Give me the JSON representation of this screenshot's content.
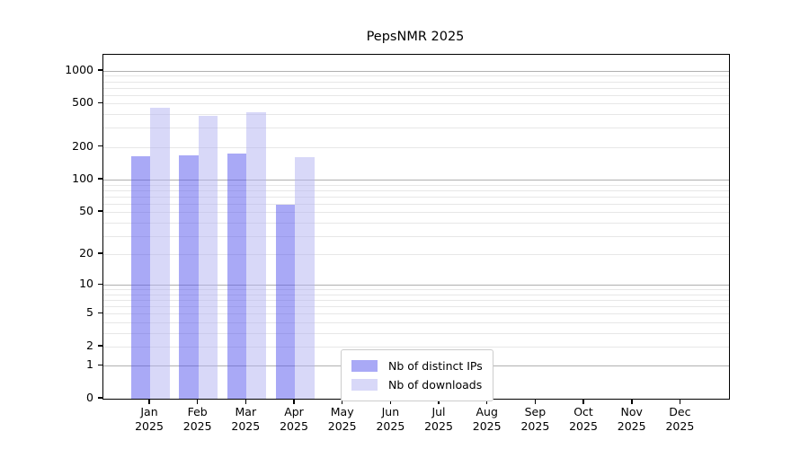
{
  "chart_data": {
    "type": "bar",
    "title": "PepsNMR 2025",
    "y_scale": "log1p",
    "grid": true,
    "legend_position": "lower-center",
    "categories": [
      "Jan",
      "Feb",
      "Mar",
      "Apr",
      "May",
      "Jun",
      "Jul",
      "Aug",
      "Sep",
      "Oct",
      "Nov",
      "Dec"
    ],
    "category_year": "2025",
    "series": [
      {
        "name": "Nb of distinct IPs",
        "color": "#5353ed",
        "alpha": 0.5,
        "color_on_white": "#a9a9f6",
        "values": [
          165,
          168,
          173,
          59,
          0,
          0,
          0,
          0,
          0,
          0,
          0,
          0
        ]
      },
      {
        "name": "Nb of downloads",
        "color": "#b1b1f1",
        "alpha": 0.5,
        "color_on_white": "#d8d8f8",
        "values": [
          459,
          388,
          420,
          161,
          0,
          0,
          0,
          0,
          0,
          0,
          0,
          0
        ]
      }
    ],
    "yticks": [
      0,
      1,
      2,
      5,
      10,
      20,
      50,
      100,
      200,
      500,
      1000
    ],
    "ylim": [
      0,
      1400
    ],
    "axis_color": "#000000",
    "major_grid_color": "#b0b0b0",
    "minor_grid_color": "#e7e7e7"
  }
}
